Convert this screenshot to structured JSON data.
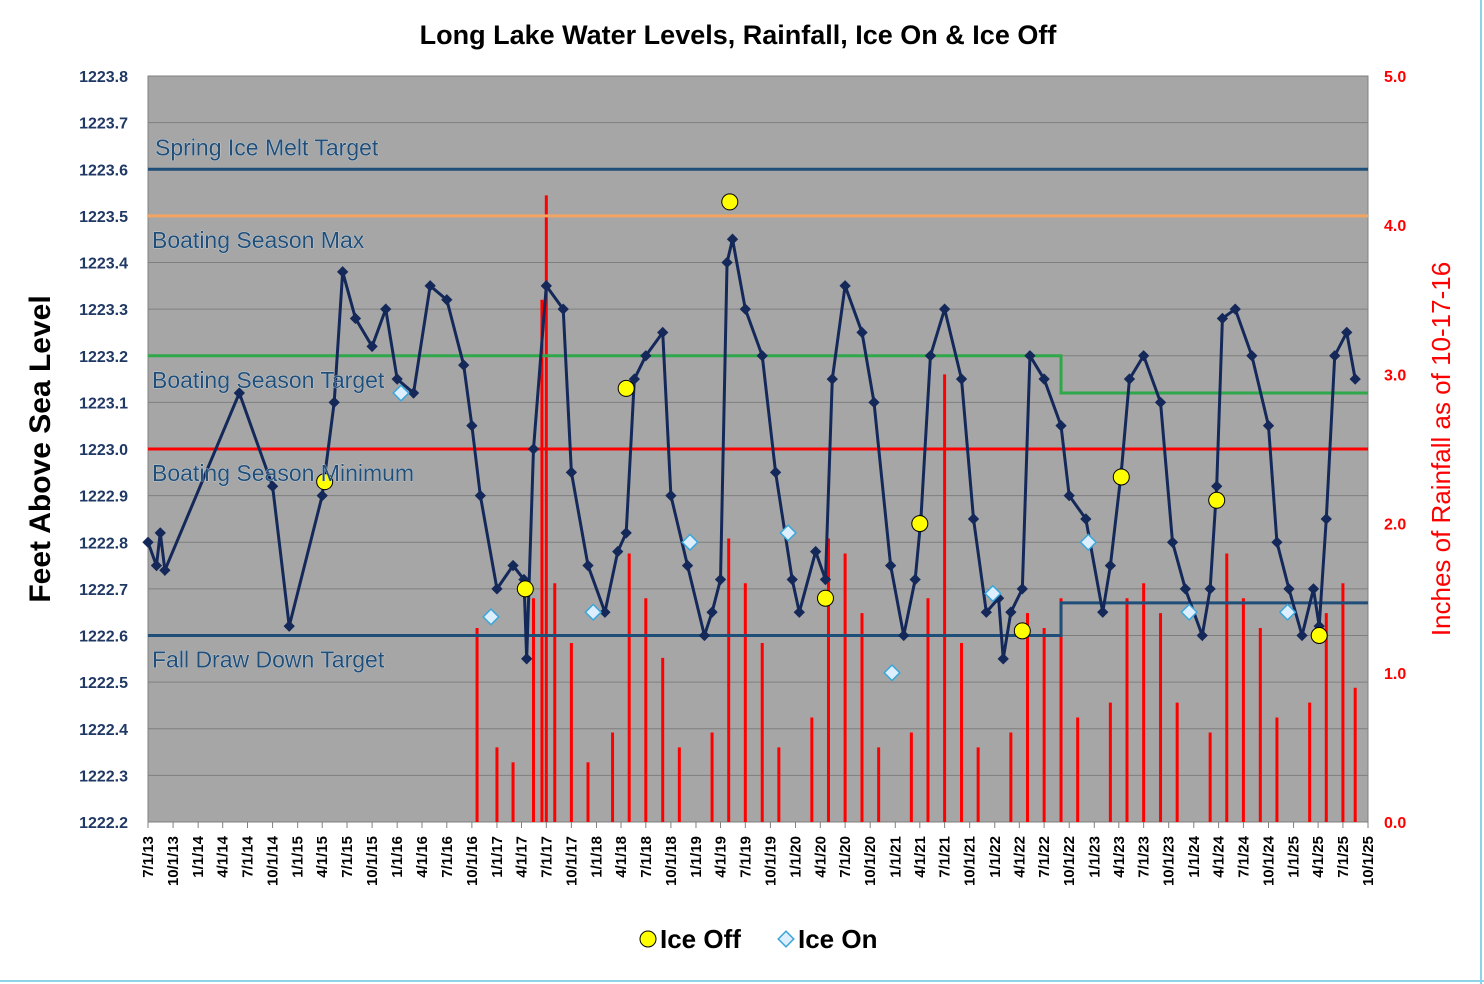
{
  "chart_data": {
    "type": "line",
    "title": "Long Lake Water Levels, Rainfall, Ice On & Ice Off",
    "ylabel": "Feet Above Sea Level",
    "y2label": "Inches of Rainfall as of 10-17-16",
    "ylim": [
      1222.2,
      1223.8
    ],
    "y2lim": [
      0,
      5
    ],
    "grid": true,
    "yticks": [
      "1222.2",
      "1222.3",
      "1222.4",
      "1222.5",
      "1222.6",
      "1222.7",
      "1222.8",
      "1222.9",
      "1223.0",
      "1223.1",
      "1223.2",
      "1223.3",
      "1223.4",
      "1223.5",
      "1223.6",
      "1223.7",
      "1223.8"
    ],
    "y2ticks": [
      "0.0",
      "1.0",
      "2.0",
      "3.0",
      "4.0",
      "5.0"
    ],
    "xticks": [
      "7/1/13",
      "10/1/13",
      "1/1/14",
      "4/1/14",
      "7/1/14",
      "10/1/14",
      "1/1/15",
      "4/1/15",
      "7/1/15",
      "10/1/15",
      "1/1/16",
      "4/1/16",
      "7/1/16",
      "10/1/16",
      "1/1/17",
      "4/1/17",
      "7/1/17",
      "10/1/17",
      "1/1/18",
      "4/1/18",
      "7/1/18",
      "10/1/18",
      "1/1/19",
      "4/1/19",
      "7/1/19",
      "10/1/19",
      "1/1/20",
      "4/1/20",
      "7/1/20",
      "10/1/20",
      "1/1/21",
      "4/1/21",
      "7/1/21",
      "10/1/21",
      "1/1/22",
      "4/1/22",
      "7/1/22",
      "10/1/22",
      "1/1/23",
      "4/1/23",
      "7/1/23",
      "10/1/23",
      "1/1/24",
      "4/1/24",
      "7/1/24",
      "10/1/24",
      "1/1/25",
      "4/1/25",
      "7/1/25",
      "10/1/25"
    ],
    "reference_lines": [
      {
        "label": "Spring Ice Melt Target",
        "color": "#1f4e79",
        "segments": [
          {
            "from": "7/1/13",
            "to": "10/1/25",
            "value": 1223.6
          }
        ]
      },
      {
        "label": "Boating Season Max",
        "color": "#f4a460",
        "segments": [
          {
            "from": "7/1/13",
            "to": "10/1/25",
            "value": 1223.5
          }
        ]
      },
      {
        "label": "Boating Season Target",
        "color": "#2ea84a",
        "segments": [
          {
            "from": "7/1/13",
            "to": "9/1/22",
            "value": 1223.2
          },
          {
            "from": "9/1/22",
            "to": "10/1/25",
            "value": 1223.12
          }
        ]
      },
      {
        "label": "Boating Season Minimum",
        "color": "#ff0000",
        "segments": [
          {
            "from": "7/1/13",
            "to": "10/1/25",
            "value": 1223.0
          }
        ]
      },
      {
        "label": "Fall Draw Down Target",
        "color": "#1f4e79",
        "segments": [
          {
            "from": "7/1/13",
            "to": "9/1/22",
            "value": 1222.6
          },
          {
            "from": "9/1/22",
            "to": "10/1/25",
            "value": 1222.67
          }
        ]
      }
    ],
    "series": [
      {
        "name": "Ice Off",
        "type": "scatter",
        "color": "#ffff00",
        "x": [
          "4/10/15",
          "4/15/17",
          "4/20/18",
          "5/5/19",
          "4/20/20",
          "4/1/21",
          "4/12/22",
          "4/10/23",
          "3/25/24",
          "4/5/25"
        ],
        "y": [
          1222.93,
          1222.7,
          1223.13,
          1223.53,
          1222.68,
          1222.84,
          1222.61,
          1222.94,
          1222.89,
          1222.6
        ]
      },
      {
        "name": "Ice On",
        "type": "scatter",
        "color": "#ddeeff",
        "x": [
          "12/10/16",
          "12/20/17",
          "12/10/18",
          "12/5/19",
          "12/20/20",
          "12/25/21",
          "12/10/22",
          "12/15/23",
          "12/10/24",
          "1/15/16"
        ],
        "y": [
          1222.64,
          1222.65,
          1222.8,
          1222.82,
          1222.52,
          1222.69,
          1222.8,
          1222.65,
          1222.65,
          1223.12
        ]
      },
      {
        "type": "line",
        "color": "#14295a",
        "x": [
          "7/1/13",
          "8/1/13",
          "8/15/13",
          "9/1/13",
          "6/1/14",
          "10/1/14",
          "12/1/14",
          "4/1/15",
          "5/15/15",
          "6/15/15",
          "8/1/15",
          "10/1/15",
          "11/20/15",
          "1/1/16",
          "3/1/16",
          "5/1/16",
          "7/1/16",
          "9/1/16",
          "10/1/16",
          "11/1/16",
          "1/1/17",
          "3/1/17",
          "4/10/17",
          "4/20/17",
          "5/15/17",
          "7/1/17",
          "9/1/17",
          "10/1/17",
          "12/1/17",
          "2/1/18",
          "3/20/18",
          "4/20/18",
          "5/20/18",
          "7/1/18",
          "9/1/18",
          "10/1/18",
          "12/1/18",
          "2/1/19",
          "3/1/19",
          "4/1/19",
          "4/25/19",
          "5/15/19",
          "7/1/19",
          "9/1/19",
          "10/20/19",
          "12/20/19",
          "1/15/20",
          "3/15/20",
          "4/20/20",
          "5/15/20",
          "7/1/20",
          "9/1/20",
          "10/15/20",
          "12/15/20",
          "2/1/21",
          "3/15/21",
          "4/5/21",
          "5/10/21",
          "7/1/21",
          "9/1/21",
          "10/15/21",
          "12/1/21",
          "1/15/22",
          "2/1/22",
          "3/1/22",
          "4/12/22",
          "5/10/22",
          "7/1/22",
          "9/1/22",
          "10/1/22",
          "12/1/22",
          "2/1/23",
          "3/1/23",
          "4/10/23",
          "5/10/23",
          "7/1/23",
          "9/1/23",
          "10/15/23",
          "12/1/23",
          "2/1/24",
          "3/1/24",
          "3/25/24",
          "4/15/24",
          "6/1/24",
          "8/1/24",
          "10/1/24",
          "11/1/24",
          "12/15/24",
          "2/1/25",
          "3/15/25",
          "4/5/25",
          "5/1/25",
          "6/1/25",
          "7/15/25",
          "8/15/25"
        ],
        "y": [
          1222.8,
          1222.75,
          1222.82,
          1222.74,
          1223.12,
          1222.92,
          1222.62,
          1222.9,
          1223.1,
          1223.38,
          1223.28,
          1223.22,
          1223.3,
          1223.15,
          1223.12,
          1223.35,
          1223.32,
          1223.18,
          1223.05,
          1222.9,
          1222.7,
          1222.75,
          1222.72,
          1222.55,
          1223.0,
          1223.35,
          1223.3,
          1222.95,
          1222.75,
          1222.65,
          1222.78,
          1222.82,
          1223.15,
          1223.2,
          1223.25,
          1222.9,
          1222.75,
          1222.6,
          1222.65,
          1222.72,
          1223.4,
          1223.45,
          1223.3,
          1223.2,
          1222.95,
          1222.72,
          1222.65,
          1222.78,
          1222.72,
          1223.15,
          1223.35,
          1223.25,
          1223.1,
          1222.75,
          1222.6,
          1222.72,
          1222.85,
          1223.2,
          1223.3,
          1223.15,
          1222.85,
          1222.65,
          1222.68,
          1222.55,
          1222.65,
          1222.7,
          1223.2,
          1223.15,
          1223.05,
          1222.9,
          1222.85,
          1222.65,
          1222.75,
          1222.95,
          1223.15,
          1223.2,
          1223.1,
          1222.8,
          1222.7,
          1222.6,
          1222.7,
          1222.92,
          1223.28,
          1223.3,
          1223.2,
          1223.05,
          1222.8,
          1222.7,
          1222.6,
          1222.7,
          1222.62,
          1222.85,
          1223.2,
          1223.25,
          1223.15
        ]
      },
      {
        "name": "Rainfall",
        "type": "bar",
        "axis": "right",
        "color": "#ff0000",
        "x": [
          "10/20/16",
          "1/1/17",
          "3/1/17",
          "5/15/17",
          "6/15/17",
          "7/1/17",
          "8/1/17",
          "10/1/17",
          "12/1/17",
          "3/1/18",
          "5/1/18",
          "7/1/18",
          "9/1/18",
          "11/1/18",
          "3/1/19",
          "5/1/19",
          "7/1/19",
          "9/1/19",
          "11/1/19",
          "3/1/20",
          "5/1/20",
          "7/1/20",
          "9/1/20",
          "11/1/20",
          "3/1/21",
          "5/1/21",
          "7/1/21",
          "9/1/21",
          "11/1/21",
          "3/1/22",
          "5/1/22",
          "7/1/22",
          "9/1/22",
          "11/1/22",
          "3/1/23",
          "5/1/23",
          "7/1/23",
          "9/1/23",
          "11/1/23",
          "3/1/24",
          "5/1/24",
          "7/1/24",
          "9/1/24",
          "11/1/24",
          "3/1/25",
          "5/1/25",
          "7/1/25",
          "8/15/25"
        ],
        "values": [
          1.3,
          0.5,
          0.4,
          1.5,
          3.5,
          4.2,
          1.6,
          1.2,
          0.4,
          0.6,
          1.8,
          1.5,
          1.1,
          0.5,
          0.6,
          1.9,
          1.6,
          1.2,
          0.5,
          0.7,
          1.9,
          1.8,
          1.4,
          0.5,
          0.6,
          1.5,
          3.0,
          1.2,
          0.5,
          0.6,
          1.4,
          1.3,
          1.5,
          0.7,
          0.8,
          1.5,
          1.6,
          1.4,
          0.8,
          0.6,
          1.8,
          1.5,
          1.3,
          0.7,
          0.8,
          1.4,
          1.6,
          0.9
        ]
      }
    ],
    "legend": {
      "position": "bottom",
      "entries": [
        "Ice Off",
        "Ice On"
      ]
    }
  }
}
